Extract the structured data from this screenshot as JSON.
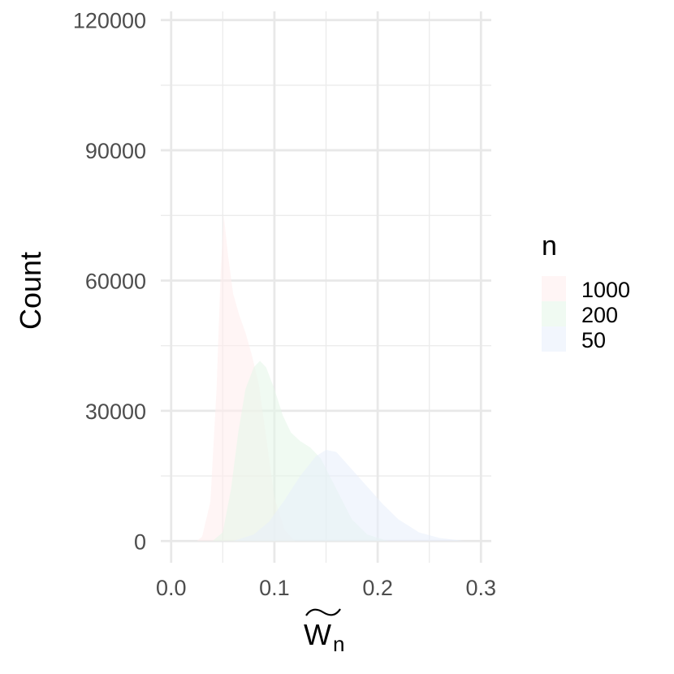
{
  "chart_data": {
    "type": "area",
    "xlabel_base": "W",
    "xlabel_subscript": "n",
    "ylabel": "Count",
    "xlim": [
      -0.01,
      0.31
    ],
    "ylim": [
      -5000,
      122000
    ],
    "x_ticks": [
      "0.0",
      "0.1",
      "0.2",
      "0.3"
    ],
    "x_tick_values": [
      0.0,
      0.1,
      0.2,
      0.3
    ],
    "y_ticks": [
      "0",
      "30000",
      "60000",
      "90000",
      "120000"
    ],
    "y_tick_values": [
      0,
      30000,
      60000,
      90000,
      120000
    ],
    "grid": true,
    "legend": {
      "title": "n",
      "position": "right"
    },
    "series": [
      {
        "name": "1000",
        "color": "#ffecec",
        "points": [
          [
            0.025,
            0
          ],
          [
            0.03,
            1000
          ],
          [
            0.038,
            9000
          ],
          [
            0.044,
            35000
          ],
          [
            0.048,
            62000
          ],
          [
            0.051,
            75000
          ],
          [
            0.055,
            66000
          ],
          [
            0.06,
            57000
          ],
          [
            0.066,
            52000
          ],
          [
            0.072,
            48000
          ],
          [
            0.078,
            43000
          ],
          [
            0.085,
            36000
          ],
          [
            0.092,
            24000
          ],
          [
            0.1,
            10000
          ],
          [
            0.11,
            2500
          ],
          [
            0.12,
            0
          ]
        ]
      },
      {
        "name": "200",
        "color": "#e3f5e7",
        "points": [
          [
            0.04,
            0
          ],
          [
            0.05,
            2000
          ],
          [
            0.058,
            12000
          ],
          [
            0.065,
            25000
          ],
          [
            0.072,
            35000
          ],
          [
            0.08,
            40000
          ],
          [
            0.086,
            41500
          ],
          [
            0.092,
            40000
          ],
          [
            0.1,
            35000
          ],
          [
            0.108,
            29000
          ],
          [
            0.116,
            25000
          ],
          [
            0.125,
            23000
          ],
          [
            0.135,
            21500
          ],
          [
            0.145,
            19000
          ],
          [
            0.16,
            12000
          ],
          [
            0.175,
            5000
          ],
          [
            0.19,
            1500
          ],
          [
            0.21,
            0
          ]
        ]
      },
      {
        "name": "50",
        "color": "#e8eefb",
        "points": [
          [
            0.06,
            0
          ],
          [
            0.08,
            1500
          ],
          [
            0.095,
            4500
          ],
          [
            0.11,
            9500
          ],
          [
            0.125,
            15000
          ],
          [
            0.14,
            19500
          ],
          [
            0.15,
            21000
          ],
          [
            0.16,
            20500
          ],
          [
            0.175,
            16500
          ],
          [
            0.19,
            12500
          ],
          [
            0.205,
            8500
          ],
          [
            0.22,
            5000
          ],
          [
            0.24,
            2000
          ],
          [
            0.26,
            700
          ],
          [
            0.285,
            0
          ]
        ]
      }
    ]
  }
}
